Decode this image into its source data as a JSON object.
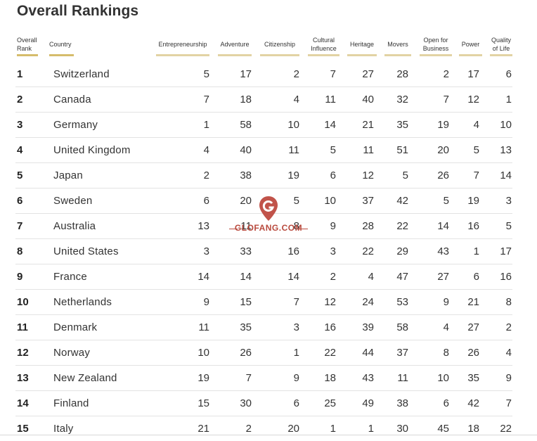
{
  "title": "Overall Rankings",
  "headers": {
    "rank": [
      "Overall",
      "Rank"
    ],
    "country": "Country",
    "entrepreneurship": "Entrepreneurship",
    "adventure": "Adventure",
    "citizenship": "Citizenship",
    "cultural_influence": [
      "Cultural",
      "Influence"
    ],
    "heritage": "Heritage",
    "movers": "Movers",
    "open_for_business": [
      "Open for",
      "Business"
    ],
    "power": "Power",
    "quality_of_life": [
      "Quality",
      "of Life"
    ]
  },
  "rows": [
    {
      "rank": "1",
      "country": "Switzerland",
      "values": [
        "5",
        "17",
        "2",
        "7",
        "27",
        "28",
        "2",
        "17",
        "6"
      ]
    },
    {
      "rank": "2",
      "country": "Canada",
      "values": [
        "7",
        "18",
        "4",
        "11",
        "40",
        "32",
        "7",
        "12",
        "1"
      ]
    },
    {
      "rank": "3",
      "country": "Germany",
      "values": [
        "1",
        "58",
        "10",
        "14",
        "21",
        "35",
        "19",
        "4",
        "10"
      ]
    },
    {
      "rank": "4",
      "country": "United Kingdom",
      "values": [
        "4",
        "40",
        "11",
        "5",
        "11",
        "51",
        "20",
        "5",
        "13"
      ]
    },
    {
      "rank": "5",
      "country": "Japan",
      "values": [
        "2",
        "38",
        "19",
        "6",
        "12",
        "5",
        "26",
        "7",
        "14"
      ]
    },
    {
      "rank": "6",
      "country": "Sweden",
      "values": [
        "6",
        "20",
        "5",
        "10",
        "37",
        "42",
        "5",
        "19",
        "3"
      ]
    },
    {
      "rank": "7",
      "country": "Australia",
      "values": [
        "13",
        "11",
        "8",
        "9",
        "28",
        "22",
        "14",
        "16",
        "5"
      ]
    },
    {
      "rank": "8",
      "country": "United States",
      "values": [
        "3",
        "33",
        "16",
        "3",
        "22",
        "29",
        "43",
        "1",
        "17"
      ]
    },
    {
      "rank": "9",
      "country": "France",
      "values": [
        "14",
        "14",
        "14",
        "2",
        "4",
        "47",
        "27",
        "6",
        "16"
      ]
    },
    {
      "rank": "10",
      "country": "Netherlands",
      "values": [
        "9",
        "15",
        "7",
        "12",
        "24",
        "53",
        "9",
        "21",
        "8"
      ]
    },
    {
      "rank": "11",
      "country": "Denmark",
      "values": [
        "11",
        "35",
        "3",
        "16",
        "39",
        "58",
        "4",
        "27",
        "2"
      ]
    },
    {
      "rank": "12",
      "country": "Norway",
      "values": [
        "10",
        "26",
        "1",
        "22",
        "44",
        "37",
        "8",
        "26",
        "4"
      ]
    },
    {
      "rank": "13",
      "country": "New Zealand",
      "values": [
        "19",
        "7",
        "9",
        "18",
        "43",
        "11",
        "10",
        "35",
        "9"
      ]
    },
    {
      "rank": "14",
      "country": "Finland",
      "values": [
        "15",
        "30",
        "6",
        "25",
        "49",
        "38",
        "6",
        "42",
        "7"
      ]
    },
    {
      "rank": "15",
      "country": "Italy",
      "values": [
        "21",
        "2",
        "20",
        "1",
        "1",
        "30",
        "45",
        "18",
        "22"
      ]
    }
  ],
  "watermark": {
    "text": "GLOFANG.COM",
    "color": "#b94a3e",
    "icon": "map-pin-g-icon"
  },
  "colors": {
    "header_underline_gold": "#d6bc6c",
    "header_underline_light": "#e2d3a4",
    "row_divider": "#e3e3e3"
  }
}
